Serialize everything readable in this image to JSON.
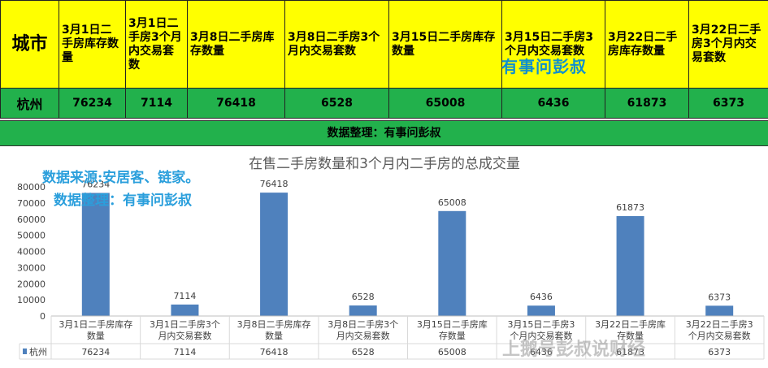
{
  "table": {
    "city_header": "城市",
    "headers": [
      "3月1日二手房库存数量",
      "3月1日二手房3个月内交易套数",
      "3月8日二手房库存数量",
      "3月8日二手房3个月内交易套数",
      "3月15日二手房库存数量",
      "3月15日二手房3个月内交易套数",
      "3月22日二手房库存数量",
      "3月22日二手房3个月内交易套数"
    ],
    "city": "杭州",
    "values": [
      "76234",
      "7114",
      "76418",
      "6528",
      "65008",
      "6436",
      "61873",
      "6373"
    ]
  },
  "overlay_top_right": "有事问彭叔",
  "credit_bar": "数据整理：有事问彭叔",
  "watermark_source": "数据来源:安居客、链家。",
  "watermark_compiled": "数据整理：有事问彭叔",
  "watermark_bottom": "上鹅号彭叔说财经",
  "chart_data": {
    "type": "bar",
    "title": "在售二手房数量和3个月内二手房的总成交量",
    "categories": [
      "3月1日二手房库存数量",
      "3月1日二手房3个月内交易套数",
      "3月8日二手房库存数量",
      "3月8日二手房3个月内交易套数",
      "3月15日二手房库存数量",
      "3月15日二手房3个月内交易套数",
      "3月22日二手房库存数量",
      "3月22日二手房3个月内交易套数"
    ],
    "series": [
      {
        "name": "杭州",
        "values": [
          76234,
          7114,
          76418,
          6528,
          65008,
          6436,
          61873,
          6373
        ]
      }
    ],
    "ylim": [
      0,
      80000
    ],
    "yticks": [
      0,
      10000,
      20000,
      30000,
      40000,
      50000,
      60000,
      70000,
      80000
    ],
    "grid": false,
    "data_table": true,
    "bar_color": "#4f81bd"
  }
}
